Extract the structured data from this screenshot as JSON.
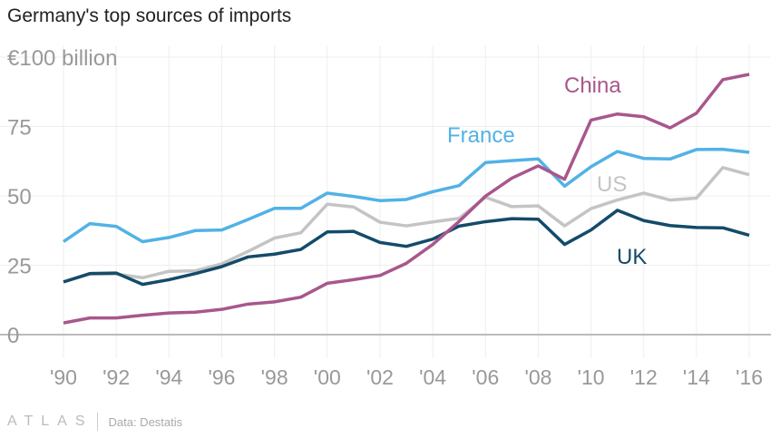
{
  "chart_data": {
    "type": "line",
    "title": "Germany's top sources of imports",
    "x": [
      1990,
      1991,
      1992,
      1993,
      1994,
      1995,
      1996,
      1997,
      1998,
      1999,
      2000,
      2001,
      2002,
      2003,
      2004,
      2005,
      2006,
      2007,
      2008,
      2009,
      2010,
      2011,
      2012,
      2013,
      2014,
      2015,
      2016
    ],
    "x_tick_labels": [
      "'90",
      "'92",
      "'94",
      "'96",
      "'98",
      "'00",
      "'02",
      "'04",
      "'06",
      "'08",
      "'10",
      "'12",
      "'14",
      "'16"
    ],
    "y_tick_labels": [
      "0",
      "25",
      "50",
      "75",
      "€100 billion"
    ],
    "y_ticks": [
      0,
      25,
      50,
      75,
      100
    ],
    "ylim": [
      0,
      100
    ],
    "grid": true,
    "series": [
      {
        "name": "France",
        "color": "#51b2e5",
        "values": [
          33.5,
          40,
          39,
          33.5,
          35,
          37.5,
          37.7,
          41.5,
          45.5,
          45.5,
          51,
          49.8,
          48.3,
          48.7,
          51.5,
          53.7,
          62,
          62.7,
          63.3,
          53.5,
          60.5,
          66,
          63.5,
          63.3,
          66.7,
          66.8,
          65.7
        ]
      },
      {
        "name": "China",
        "color": "#a8578c",
        "values": [
          4.2,
          6,
          6,
          7,
          7.8,
          8.1,
          9.1,
          11,
          11.8,
          13.5,
          18.5,
          19.8,
          21.3,
          25.7,
          32.5,
          40.8,
          49.9,
          56.4,
          60.8,
          56,
          77.3,
          79.5,
          78.5,
          74.5,
          79.8,
          91.9,
          93.8
        ]
      },
      {
        "name": "US",
        "color": "#c4c4c4",
        "values": [
          19,
          21.8,
          21.8,
          20.5,
          22.8,
          23,
          25.5,
          30,
          34.8,
          36.7,
          47,
          46,
          40.5,
          39.2,
          40.6,
          41.9,
          49.5,
          46.1,
          46.4,
          39.2,
          45.4,
          48.5,
          51,
          48.5,
          49.2,
          60.2,
          57.6
        ]
      },
      {
        "name": "UK",
        "color": "#134b6a",
        "values": [
          19,
          22,
          22.2,
          18.1,
          19.8,
          22,
          24.5,
          28,
          29,
          30.7,
          37,
          37.2,
          33.2,
          31.8,
          34.4,
          39.1,
          40.7,
          41.8,
          41.6,
          32.5,
          37.7,
          44.8,
          41.1,
          39.3,
          38.6,
          38.5,
          35.8
        ]
      }
    ]
  },
  "footer": {
    "logo": "ATLAS",
    "source": "Data: Destatis"
  }
}
